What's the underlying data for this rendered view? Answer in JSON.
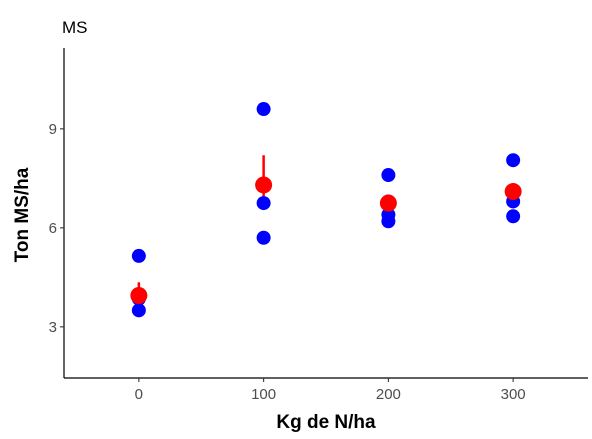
{
  "chart_data": {
    "type": "scatter",
    "title": "MS",
    "xlabel": "Kg de N/ha",
    "ylabel": "Ton MS/ha",
    "xlim": [
      -60,
      360
    ],
    "ylim": [
      1.45,
      11.45
    ],
    "x_ticks": [
      0,
      100,
      200,
      300
    ],
    "x_tick_labels": [
      "0",
      "100",
      "200",
      "300"
    ],
    "y_ticks": [
      3,
      6,
      9
    ],
    "y_tick_labels": [
      "3",
      "6",
      "9"
    ],
    "grid": false,
    "legend": "none",
    "series": [
      {
        "style": "points",
        "color": "#0000ff",
        "points": [
          {
            "x": 0,
            "y": 5.15
          },
          {
            "x": 0,
            "y": 3.85
          },
          {
            "x": 0,
            "y": 3.5
          },
          {
            "x": 100,
            "y": 9.6
          },
          {
            "x": 100,
            "y": 6.75
          },
          {
            "x": 100,
            "y": 5.7
          },
          {
            "x": 200,
            "y": 7.6
          },
          {
            "x": 200,
            "y": 6.8
          },
          {
            "x": 200,
            "y": 6.4
          },
          {
            "x": 200,
            "y": 6.2
          },
          {
            "x": 300,
            "y": 8.05
          },
          {
            "x": 300,
            "y": 6.8
          },
          {
            "x": 300,
            "y": 6.35
          }
        ]
      },
      {
        "style": "mean-with-error",
        "color": "#ff0000",
        "points": [
          {
            "x": 0,
            "y": 3.95,
            "ymin": 3.55,
            "ymax": 4.35
          },
          {
            "x": 100,
            "y": 7.3,
            "ymin": 6.6,
            "ymax": 8.2
          },
          {
            "x": 200,
            "y": 6.75,
            "ymin": 6.45,
            "ymax": 7.0
          },
          {
            "x": 300,
            "y": 7.1,
            "ymin": 6.8,
            "ymax": 7.35
          }
        ]
      }
    ]
  }
}
